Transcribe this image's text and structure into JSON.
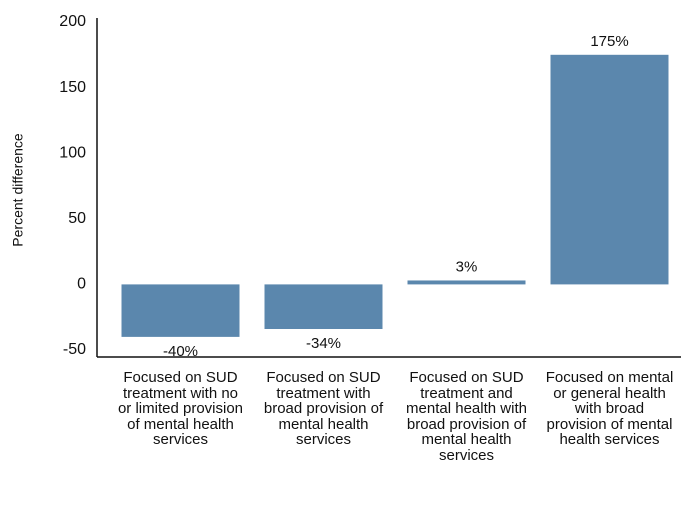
{
  "chart_data": {
    "type": "bar",
    "y_label": "Percent difference",
    "categories": [
      "Focused on SUD treatment with no or limited provision of mental health services",
      "Focused on SUD treatment with broad provision of mental health services",
      "Focused on SUD treatment and mental health with broad provision of mental health services",
      "Focused on mental or general health with broad provision of mental health services"
    ],
    "values": [
      -40,
      -34,
      3,
      175
    ],
    "value_labels": [
      "-40%",
      "-34%",
      "3%",
      "175%"
    ],
    "color": "#5b87ad",
    "ylim": [
      -50,
      200
    ],
    "yticks": [
      -50,
      0,
      50,
      100,
      150,
      200
    ]
  }
}
